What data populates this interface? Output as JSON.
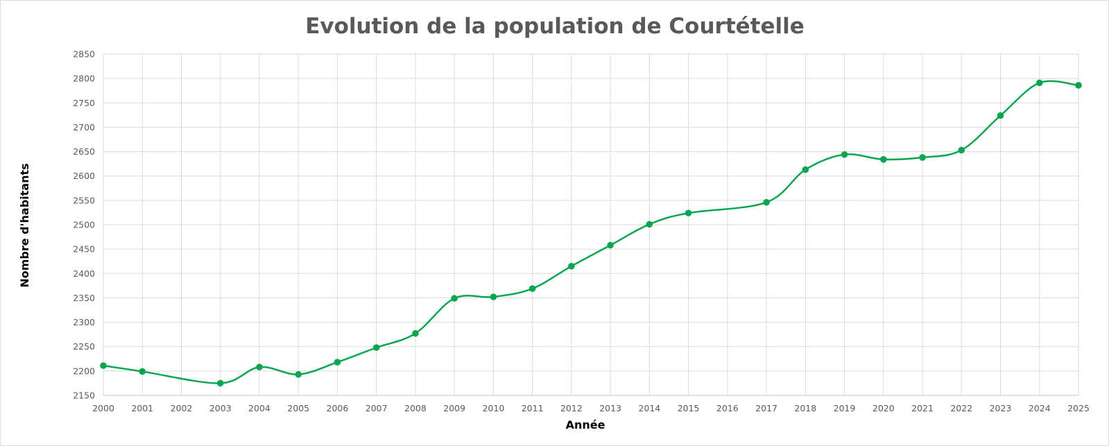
{
  "chart_data": {
    "type": "line",
    "title": "Evolution de la population de Courtételle",
    "xlabel": "Année",
    "ylabel": "Nombre d'habitants",
    "x": [
      2000,
      2001,
      2003,
      2004,
      2005,
      2006,
      2007,
      2008,
      2009,
      2010,
      2011,
      2012,
      2013,
      2014,
      2015,
      2017,
      2018,
      2019,
      2020,
      2021,
      2022,
      2023,
      2024,
      2025
    ],
    "series": [
      {
        "values": [
          2211,
          2199,
          2175,
          2208,
          2193,
          2218,
          2248,
          2277,
          2349,
          2352,
          2369,
          2415,
          2458,
          2501,
          2524,
          2546,
          2613,
          2644,
          2634,
          2638,
          2653,
          2724,
          2791,
          2786
        ],
        "color": "#0aa550"
      }
    ],
    "x_ticks": [
      "2000",
      "2001",
      "2002",
      "2003",
      "2004",
      "2005",
      "2006",
      "2007",
      "2008",
      "2009",
      "2010",
      "2011",
      "2012",
      "2013",
      "2014",
      "2015",
      "2016",
      "2017",
      "2018",
      "2019",
      "2020",
      "2021",
      "2022",
      "2023",
      "2024",
      "2025"
    ],
    "y_ticks": [
      "2150",
      "2200",
      "2250",
      "2300",
      "2350",
      "2400",
      "2450",
      "2500",
      "2550",
      "2600",
      "2650",
      "2700",
      "2750",
      "2800",
      "2850"
    ],
    "xlim": [
      2000,
      2025
    ],
    "ylim": [
      2150,
      2850
    ],
    "grid": true,
    "smooth": true,
    "markers": true
  }
}
